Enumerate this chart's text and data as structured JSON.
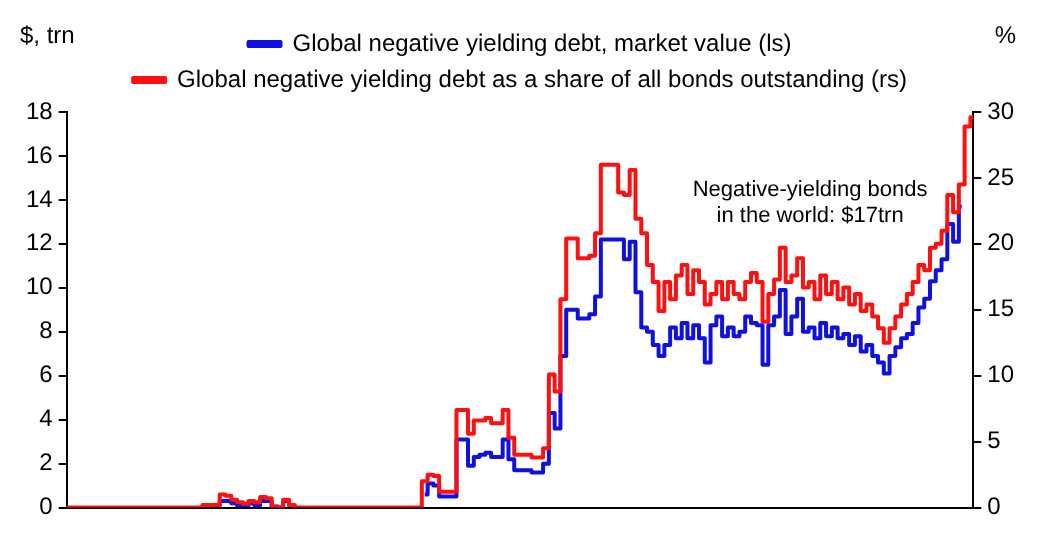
{
  "chart_data": {
    "type": "step",
    "ylabel": "$, trn",
    "y2label": "%",
    "categories": [
      null,
      null,
      null,
      null,
      null,
      null,
      null,
      null,
      null,
      null,
      null,
      null,
      null,
      null,
      null,
      null,
      null,
      null,
      null,
      null,
      null,
      null,
      null,
      null,
      null,
      null,
      null,
      null,
      null,
      null,
      null,
      null,
      null,
      null,
      null,
      null,
      null,
      null,
      null,
      null,
      null,
      null,
      null,
      null,
      null,
      null,
      null,
      null,
      null,
      null,
      null,
      null,
      null,
      null,
      null,
      null,
      null,
      null,
      null,
      null,
      null,
      null,
      null,
      null,
      null,
      null,
      null,
      null,
      null,
      null,
      null,
      null,
      null,
      null,
      null,
      null,
      null,
      null,
      null,
      null,
      null,
      null,
      null,
      null,
      null,
      null,
      null,
      null,
      null,
      null,
      null,
      null,
      null,
      null,
      null,
      null,
      null,
      null,
      null,
      null,
      null,
      null,
      null,
      null,
      null,
      null,
      null,
      null,
      null,
      null,
      null,
      null,
      null,
      null,
      null,
      null,
      null,
      null,
      null,
      null,
      null,
      null,
      null,
      null,
      null,
      null,
      null,
      null,
      null,
      null,
      null,
      null,
      null,
      null,
      null,
      null,
      null,
      null,
      null,
      null,
      null,
      null,
      null,
      null,
      null,
      null,
      null,
      null,
      null,
      null,
      null,
      null,
      null,
      null,
      null,
      null,
      null,
      null
    ],
    "series": [
      {
        "name": "Global negative yielding debt, market value (ls)",
        "color": "#1010e0",
        "axis": "y",
        "values": [
          null,
          null,
          null,
          null,
          null,
          null,
          null,
          null,
          null,
          null,
          null,
          null,
          null,
          null,
          null,
          null,
          null,
          null,
          null,
          null,
          null,
          null,
          null,
          null,
          null,
          null,
          0.1,
          0.3,
          0.3,
          0.2,
          0.1,
          0.1,
          0.2,
          0.1,
          0.3,
          0.3,
          0,
          0,
          0.3,
          0.1,
          null,
          null,
          null,
          null,
          null,
          null,
          null,
          null,
          null,
          null,
          null,
          null,
          null,
          null,
          null,
          null,
          null,
          null,
          null,
          null,
          null,
          null,
          0.6,
          1.1,
          1.0,
          0.5,
          0.5,
          0.5,
          3.1,
          3.1,
          1.9,
          2.3,
          2.4,
          2.5,
          2.3,
          2.3,
          3.1,
          2.2,
          1.7,
          1.7,
          1.7,
          1.6,
          1.6,
          2.0,
          4.3,
          3.6,
          6.9,
          9.0,
          9.0,
          8.6,
          8.6,
          8.8,
          9.6,
          12.2,
          12.2,
          12.2,
          12.2,
          11.3,
          12.1,
          9.8,
          8.2,
          8.0,
          7.4,
          6.9,
          7.4,
          8.2,
          7.7,
          8.4,
          7.7,
          8.3,
          7.7,
          6.6,
          8.3,
          8.7,
          7.8,
          8.2,
          7.8,
          8.0,
          8.7,
          8.4,
          8.3,
          6.5,
          8.3,
          8.7,
          9.9,
          7.9,
          8.7,
          9.5,
          8.0,
          8.2,
          7.7,
          8.4,
          7.8,
          8.2,
          7.7,
          7.9,
          7.4,
          7.8,
          7.1,
          7.4,
          6.9,
          6.6,
          6.1,
          6.9,
          7.3,
          7.7,
          7.9,
          8.4,
          9.1,
          9.5,
          10.3,
          10.8,
          11.3,
          12.9,
          12.1,
          13.7,
          null,
          null
        ]
      },
      {
        "name": "Global negative yielding debt as a share of all bonds outstanding (rs)",
        "color": "#ff1010",
        "axis": "y2",
        "values": [
          0,
          0,
          0,
          0,
          0,
          0,
          0,
          0,
          0,
          0,
          0,
          0,
          0,
          0,
          0,
          0,
          0,
          0,
          0,
          0,
          0,
          0,
          0,
          0,
          0.2,
          0.2,
          0.2,
          1.0,
          0.9,
          0.6,
          0.4,
          0.3,
          0.5,
          0.4,
          0.8,
          0.7,
          0.1,
          0,
          0.6,
          0.2,
          0,
          0,
          0,
          0,
          0,
          0,
          0,
          0,
          0,
          0,
          0,
          0,
          0,
          0,
          0,
          0,
          0,
          0,
          0,
          0,
          0,
          0,
          2.0,
          2.5,
          2.4,
          1.2,
          1.2,
          1.2,
          7.4,
          7.4,
          5.6,
          6.6,
          6.6,
          6.8,
          6.4,
          6.4,
          7.4,
          5.3,
          4.0,
          4.0,
          4.0,
          3.8,
          3.8,
          4.5,
          10.1,
          8.8,
          15.8,
          20.4,
          20.4,
          18.9,
          18.9,
          19.1,
          20.8,
          26.0,
          26.0,
          26.0,
          23.9,
          23.7,
          25.6,
          21.9,
          20.8,
          18.4,
          17.1,
          14.9,
          17.1,
          15.8,
          17.6,
          18.4,
          16.2,
          18.0,
          17.1,
          15.4,
          16.2,
          17.1,
          15.8,
          17.1,
          16.2,
          15.8,
          17.1,
          17.8,
          17.1,
          14.1,
          16.2,
          17.3,
          19.7,
          17.1,
          17.6,
          18.9,
          16.7,
          17.1,
          15.8,
          17.6,
          16.2,
          17.1,
          15.8,
          16.7,
          15.4,
          16.2,
          14.9,
          15.4,
          14.5,
          13.6,
          12.5,
          13.6,
          14.5,
          15.4,
          16.2,
          17.1,
          18.4,
          18.0,
          19.7,
          20.0,
          21.0,
          23.7,
          22.4,
          24.5,
          28.9,
          29.6
        ]
      }
    ],
    "ylim": [
      0,
      18
    ],
    "yticks": [
      0,
      2,
      4,
      6,
      8,
      10,
      12,
      14,
      16,
      18
    ],
    "y2lim": [
      0,
      30
    ],
    "y2ticks": [
      0,
      5,
      10,
      15,
      20,
      25,
      30
    ],
    "legend": "top",
    "grid": false,
    "annotations": [
      "Negative-yielding bonds in the world: $17trn"
    ]
  }
}
